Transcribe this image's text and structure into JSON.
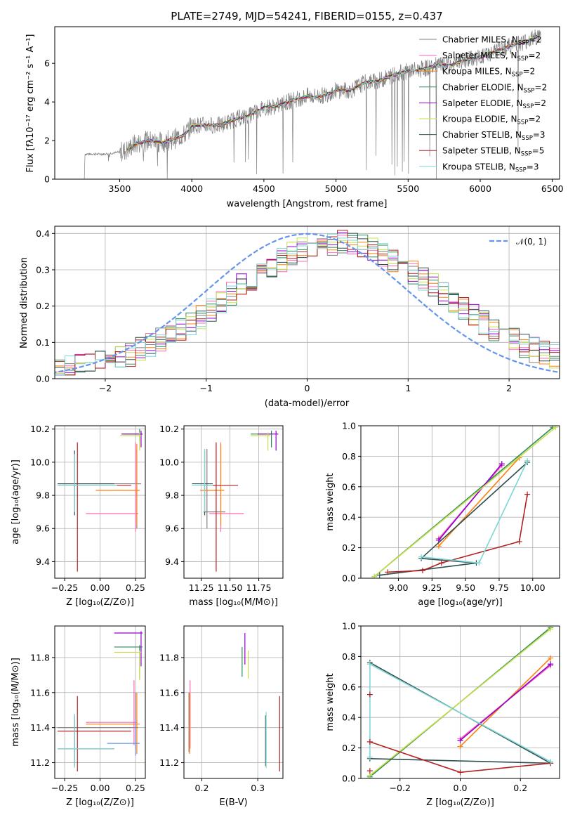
{
  "colors": {
    "chabrier_miles": "#808080",
    "salpeter_miles": "#ff69b4",
    "kroupa_miles": "#ff7f0e",
    "chabrier_elodie": "#2e8b57",
    "salpeter_elodie": "#9400d3",
    "kroupa_elodie": "#c7e04a",
    "chabrier_stelib": "#2f4f4f",
    "salpeter_stelib": "#b22222",
    "kroupa_stelib": "#7fd6d6",
    "normal": "#6495ed",
    "data_spectrum": "#808080"
  },
  "chart_data": [
    {
      "id": "spectrum",
      "type": "line",
      "title": "PLATE=2749, MJD=54241, FIBERID=0155, z=0.437",
      "xlabel": "wavelength [Angstrom, rest frame]",
      "ylabel": "Flux [fλ10⁻¹⁷ erg cm⁻² s⁻¹ A⁻¹]",
      "xlim": [
        3050,
        6550
      ],
      "ylim": [
        0,
        7.9
      ],
      "xticks": [
        "3500",
        "4000",
        "4500",
        "5000",
        "5500",
        "6000",
        "6500"
      ],
      "yticks": [
        "0",
        "2",
        "4",
        "6"
      ],
      "grid": false,
      "legend_position": "top-right",
      "legend": [
        {
          "label": "Chabrier MILES, N",
          "sub": "SSP",
          "suffix": "=2",
          "color": "chabrier_miles"
        },
        {
          "label": "Salpeter MILES, N",
          "sub": "SSP",
          "suffix": "=2",
          "color": "salpeter_miles"
        },
        {
          "label": "Kroupa MILES, N",
          "sub": "SSP",
          "suffix": "=2",
          "color": "kroupa_miles"
        },
        {
          "label": "Chabrier ELODIE, N",
          "sub": "SSP",
          "suffix": "=2",
          "color": "chabrier_elodie"
        },
        {
          "label": "Salpeter ELODIE, N",
          "sub": "SSP",
          "suffix": "=2",
          "color": "salpeter_elodie"
        },
        {
          "label": "Kroupa ELODIE, N",
          "sub": "SSP",
          "suffix": "=2",
          "color": "kroupa_elodie"
        },
        {
          "label": "Chabrier STELIB, N",
          "sub": "SSP",
          "suffix": "=3",
          "color": "chabrier_stelib"
        },
        {
          "label": "Salpeter STELIB, N",
          "sub": "SSP",
          "suffix": "=5",
          "color": "salpeter_stelib"
        },
        {
          "label": "Kroupa STELIB, N",
          "sub": "SSP",
          "suffix": "=3",
          "color": "kroupa_stelib"
        }
      ],
      "model_continuum": {
        "x": [
          3250,
          3400,
          3500,
          3550,
          3600,
          3700,
          3800,
          3880,
          3950,
          4000,
          4100,
          4200,
          4300,
          4400,
          4500,
          4600,
          4700,
          4800,
          4900,
          5000,
          5100,
          5200,
          5300,
          5400,
          5500,
          5600,
          5700,
          5800,
          5900,
          6000,
          6100,
          6200,
          6300,
          6400
        ],
        "y": [
          1.3,
          1.3,
          1.4,
          1.5,
          1.8,
          2.0,
          1.9,
          2.1,
          2.3,
          2.8,
          2.8,
          2.8,
          3.1,
          3.3,
          3.7,
          3.8,
          4.1,
          4.3,
          4.3,
          4.6,
          4.6,
          5.0,
          5.1,
          5.4,
          5.6,
          5.7,
          5.9,
          5.9,
          6.2,
          6.3,
          6.6,
          6.9,
          7.1,
          7.4
        ]
      }
    },
    {
      "id": "residuals",
      "type": "line",
      "xlabel": "(data-model)/error",
      "ylabel": "Normed distribution",
      "xlim": [
        -2.5,
        2.5
      ],
      "ylim": [
        0,
        0.42
      ],
      "xticks": [
        "−2",
        "−1",
        "0",
        "1",
        "2"
      ],
      "yticks": [
        "0.0",
        "0.1",
        "0.2",
        "0.3",
        "0.4"
      ],
      "grid": true,
      "legend_position": "top-right",
      "normal_label": "𝒩(0, 1)"
    },
    {
      "id": "z-age",
      "type": "scatter",
      "xlabel": "Z [log₁₀(Z/Z⊙)]",
      "ylabel": "age  [log₁₀(age/yr)]",
      "xlim": [
        -0.32,
        0.32
      ],
      "ylim": [
        9.3,
        10.22
      ],
      "xticks": [
        "−0.25",
        "0.00",
        "0.25"
      ],
      "yticks": [
        "9.4",
        "9.6",
        "9.8",
        "10.0",
        "10.2"
      ],
      "grid": true,
      "points": [
        {
          "series": "chabrier_miles",
          "x": 0.26,
          "xlo": -0.3,
          "xhi": 0.29,
          "y": 9.87,
          "ylo": 9.6,
          "yhi": 10.08
        },
        {
          "series": "salpeter_miles",
          "x": 0.25,
          "xlo": -0.1,
          "xhi": 0.27,
          "y": 9.69,
          "ylo": 9.58,
          "yhi": 10.12
        },
        {
          "series": "kroupa_miles",
          "x": 0.26,
          "xlo": -0.03,
          "xhi": 0.28,
          "y": 9.83,
          "ylo": 9.62,
          "yhi": 10.11
        },
        {
          "series": "chabrier_elodie",
          "x": 0.28,
          "xlo": 0.16,
          "xhi": 0.3,
          "y": 10.17,
          "ylo": 10.13,
          "yhi": 10.2
        },
        {
          "series": "salpeter_elodie",
          "x": 0.29,
          "xlo": 0.15,
          "xhi": 0.3,
          "y": 10.17,
          "ylo": 10.09,
          "yhi": 10.19
        },
        {
          "series": "kroupa_elodie",
          "x": 0.28,
          "xlo": 0.14,
          "xhi": 0.29,
          "y": 10.16,
          "ylo": 10.07,
          "yhi": 10.18
        },
        {
          "series": "chabrier_stelib",
          "x": -0.18,
          "xlo": -0.3,
          "xhi": 0.1,
          "y": 9.87,
          "ylo": 9.68,
          "yhi": 10.07
        },
        {
          "series": "salpeter_stelib",
          "x": -0.16,
          "xlo": -0.3,
          "xhi": 0.22,
          "y": 9.86,
          "ylo": 9.34,
          "yhi": 10.12
        },
        {
          "series": "kroupa_stelib",
          "x": -0.18,
          "xlo": -0.3,
          "xhi": 0.12,
          "y": 9.86,
          "ylo": 9.7,
          "yhi": 10.05
        }
      ]
    },
    {
      "id": "mass-age",
      "type": "scatter",
      "xlabel": "mass [log₁₀(M/M⊙)]",
      "xlim": [
        11.1,
        11.96
      ],
      "ylim": [
        9.3,
        10.22
      ],
      "xticks": [
        "11.25",
        "11.50",
        "11.75"
      ],
      "yticks": [
        "9.4",
        "9.6",
        "9.8",
        "10.0",
        "10.2"
      ],
      "grid": true,
      "points": [
        {
          "series": "chabrier_miles",
          "x": 11.3,
          "xlo": 11.27,
          "xhi": 11.46,
          "y": 9.7,
          "ylo": 9.6,
          "yhi": 10.08
        },
        {
          "series": "salpeter_miles",
          "x": 11.42,
          "xlo": 11.32,
          "xhi": 11.62,
          "y": 9.69,
          "ylo": 9.58,
          "yhi": 10.12
        },
        {
          "series": "kroupa_miles",
          "x": 11.42,
          "xlo": 11.24,
          "xhi": 11.45,
          "y": 9.83,
          "ylo": 9.62,
          "yhi": 10.11
        },
        {
          "series": "chabrier_elodie",
          "x": 11.86,
          "xlo": 11.68,
          "xhi": 11.87,
          "y": 10.17,
          "ylo": 10.09,
          "yhi": 10.19
        },
        {
          "series": "salpeter_elodie",
          "x": 11.9,
          "xlo": 11.74,
          "xhi": 11.92,
          "y": 10.17,
          "ylo": 10.07,
          "yhi": 10.19
        },
        {
          "series": "kroupa_elodie",
          "x": 11.83,
          "xlo": 11.68,
          "xhi": 11.85,
          "y": 10.16,
          "ylo": 10.07,
          "yhi": 10.18
        },
        {
          "series": "chabrier_stelib",
          "x": 11.28,
          "xlo": 11.17,
          "xhi": 11.35,
          "y": 9.87,
          "ylo": 9.68,
          "yhi": 10.07
        },
        {
          "series": "salpeter_stelib",
          "x": 11.38,
          "xlo": 11.25,
          "xhi": 11.57,
          "y": 9.86,
          "ylo": 9.34,
          "yhi": 10.12
        },
        {
          "series": "kroupa_stelib",
          "x": 11.28,
          "xlo": 11.17,
          "xhi": 11.35,
          "y": 9.86,
          "ylo": 9.7,
          "yhi": 10.08
        }
      ]
    },
    {
      "id": "age-massweight",
      "type": "line",
      "xlabel": "age  [log₁₀(age/yr)]",
      "ylabel": "mass weight",
      "xlim": [
        8.72,
        10.2
      ],
      "ylim": [
        0,
        1.0
      ],
      "xticks": [
        "9.00",
        "9.25",
        "9.50",
        "9.75",
        "10.00"
      ],
      "yticks": [
        "0.0",
        "0.2",
        "0.4",
        "0.6",
        "0.8",
        "1.0"
      ],
      "grid": true,
      "series": [
        {
          "series": "chabrier_miles",
          "x": [
            9.3,
            9.77
          ],
          "y": [
            0.25,
            0.75
          ]
        },
        {
          "series": "salpeter_miles",
          "x": [
            9.3,
            9.77
          ],
          "y": [
            0.26,
            0.74
          ]
        },
        {
          "series": "kroupa_miles",
          "x": [
            9.3,
            9.9
          ],
          "y": [
            0.21,
            0.79
          ]
        },
        {
          "series": "chabrier_elodie",
          "x": [
            8.82,
            10.15
          ],
          "y": [
            0.01,
            0.99
          ]
        },
        {
          "series": "salpeter_elodie",
          "x": [
            9.3,
            9.77
          ],
          "y": [
            0.25,
            0.75
          ]
        },
        {
          "series": "kroupa_elodie",
          "x": [
            8.82,
            10.17
          ],
          "y": [
            0.01,
            0.99
          ]
        },
        {
          "series": "chabrier_stelib",
          "x": [
            8.86,
            9.58,
            9.17,
            9.96
          ],
          "y": [
            0.02,
            0.1,
            0.13,
            0.76
          ]
        },
        {
          "series": "salpeter_stelib",
          "x": [
            8.92,
            9.18,
            9.32,
            9.9,
            9.96
          ],
          "y": [
            0.04,
            0.05,
            0.1,
            0.24,
            0.55
          ]
        },
        {
          "series": "kroupa_stelib",
          "x": [
            9.17,
            9.6,
            9.96
          ],
          "y": [
            0.14,
            0.1,
            0.77
          ]
        }
      ]
    },
    {
      "id": "z-mass",
      "type": "scatter",
      "xlabel": "Z [log₁₀(Z/Z⊙)]",
      "ylabel": "mass [log₁₀(M/M⊙)]",
      "xlim": [
        -0.32,
        0.32
      ],
      "ylim": [
        11.11,
        11.98
      ],
      "xticks": [
        "−0.25",
        "0.00",
        "0.25"
      ],
      "yticks": [
        "11.2",
        "11.4",
        "11.6",
        "11.8"
      ],
      "grid": true,
      "points": [
        {
          "series": "chabrier_miles",
          "x": 0.25,
          "xlo": -0.3,
          "xhi": 0.27,
          "y": 11.4,
          "ylo": 11.28,
          "yhi": 11.6
        },
        {
          "series": "salpeter_miles",
          "x": 0.24,
          "xlo": -0.1,
          "xhi": 0.26,
          "y": 11.43,
          "ylo": 11.3,
          "yhi": 11.67
        },
        {
          "series": "kroupa_miles",
          "x": 0.26,
          "xlo": -0.1,
          "xhi": 0.28,
          "y": 11.42,
          "ylo": 11.25,
          "yhi": 11.6
        },
        {
          "series": "chabrier_elodie",
          "x": 0.28,
          "xlo": 0.1,
          "xhi": 0.3,
          "y": 11.86,
          "ylo": 11.68,
          "yhi": 11.87
        },
        {
          "series": "salpeter_elodie",
          "x": 0.29,
          "xlo": 0.1,
          "xhi": 0.3,
          "y": 11.94,
          "ylo": 11.75,
          "yhi": 11.95
        },
        {
          "series": "kroupa_elodie",
          "x": 0.28,
          "xlo": 0.1,
          "xhi": 0.29,
          "y": 11.83,
          "ylo": 11.67,
          "yhi": 11.84
        },
        {
          "series": "chabrier_stelib",
          "x": -0.18,
          "xlo": -0.3,
          "xhi": 0.1,
          "y": 11.28,
          "ylo": 11.18,
          "yhi": 11.47
        },
        {
          "series": "salpeter_stelib",
          "x": -0.16,
          "xlo": -0.3,
          "xhi": 0.22,
          "y": 11.38,
          "ylo": 11.15,
          "yhi": 11.58
        },
        {
          "series": "kroupa_stelib",
          "x": -0.18,
          "xlo": -0.3,
          "xhi": 0.1,
          "y": 11.28,
          "ylo": 11.17,
          "yhi": 11.48
        },
        {
          "series": "normal",
          "x": 0.25,
          "xlo": 0.05,
          "xhi": 0.28,
          "y": 11.31,
          "ylo": 11.24,
          "yhi": 11.45
        }
      ]
    },
    {
      "id": "ebv-mass",
      "type": "scatter",
      "xlabel": "E(B-V)",
      "xlim": [
        0.168,
        0.345
      ],
      "ylim": [
        11.11,
        11.98
      ],
      "xticks": [
        "0.2",
        "0.3"
      ],
      "yticks": [
        "11.2",
        "11.4",
        "11.6",
        "11.8"
      ],
      "grid": true,
      "points": [
        {
          "series": "chabrier_miles",
          "x": 0.177,
          "ylo": 11.26,
          "yhi": 11.6
        },
        {
          "series": "salpeter_miles",
          "x": 0.179,
          "ylo": 11.28,
          "yhi": 11.67
        },
        {
          "series": "kroupa_miles",
          "x": 0.178,
          "ylo": 11.25,
          "yhi": 11.6
        },
        {
          "series": "chabrier_elodie",
          "x": 0.272,
          "ylo": 11.69,
          "yhi": 11.86
        },
        {
          "series": "salpeter_elodie",
          "x": 0.277,
          "ylo": 11.76,
          "yhi": 11.94
        },
        {
          "series": "kroupa_elodie",
          "x": 0.283,
          "ylo": 11.68,
          "yhi": 11.84
        },
        {
          "series": "chabrier_stelib",
          "x": 0.314,
          "ylo": 11.18,
          "yhi": 11.47
        },
        {
          "series": "salpeter_stelib",
          "x": 0.339,
          "ylo": 11.15,
          "yhi": 11.58
        },
        {
          "series": "kroupa_stelib",
          "x": 0.315,
          "ylo": 11.17,
          "yhi": 11.49
        }
      ]
    },
    {
      "id": "z-massweight",
      "type": "line",
      "xlabel": "Z [log₁₀(Z/Z⊙)]",
      "ylabel": "mass weight",
      "xlim": [
        -0.33,
        0.33
      ],
      "ylim": [
        0,
        1.0
      ],
      "xticks": [
        "−0.2",
        "0.0",
        "0.2"
      ],
      "yticks": [
        "0.0",
        "0.2",
        "0.4",
        "0.6",
        "0.8",
        "1.0"
      ],
      "grid": true,
      "series": [
        {
          "series": "chabrier_miles",
          "x": [
            0.0,
            0.3
          ],
          "y": [
            0.25,
            0.75
          ]
        },
        {
          "series": "salpeter_miles",
          "x": [
            0.0,
            0.3
          ],
          "y": [
            0.26,
            0.74
          ]
        },
        {
          "series": "kroupa_miles",
          "x": [
            0.0,
            0.3
          ],
          "y": [
            0.21,
            0.79
          ]
        },
        {
          "series": "chabrier_elodie",
          "x": [
            -0.3,
            0.3
          ],
          "y": [
            0.01,
            0.99
          ]
        },
        {
          "series": "salpeter_elodie",
          "x": [
            0.0,
            0.3
          ],
          "y": [
            0.25,
            0.75
          ]
        },
        {
          "series": "kroupa_elodie",
          "x": [
            -0.3,
            0.3
          ],
          "y": [
            0.02,
            0.98
          ]
        },
        {
          "series": "chabrier_stelib",
          "x": [
            -0.3,
            0.3,
            -0.3
          ],
          "y": [
            0.76,
            0.1,
            0.13
          ]
        },
        {
          "series": "salpeter_stelib",
          "x": [
            -0.3,
            0.0,
            0.3
          ],
          "y": [
            0.24,
            0.04,
            0.1
          ]
        },
        {
          "series": "kroupa_stelib",
          "x": [
            -0.3,
            -0.3,
            0.3
          ],
          "y": [
            0.14,
            0.75,
            0.11
          ]
        }
      ],
      "markers": [
        {
          "series": "salpeter_stelib",
          "x": -0.3,
          "y": 0.55
        },
        {
          "series": "salpeter_stelib",
          "x": -0.3,
          "y": 0.24
        },
        {
          "series": "salpeter_stelib",
          "x": -0.3,
          "y": 0.05
        }
      ]
    }
  ]
}
